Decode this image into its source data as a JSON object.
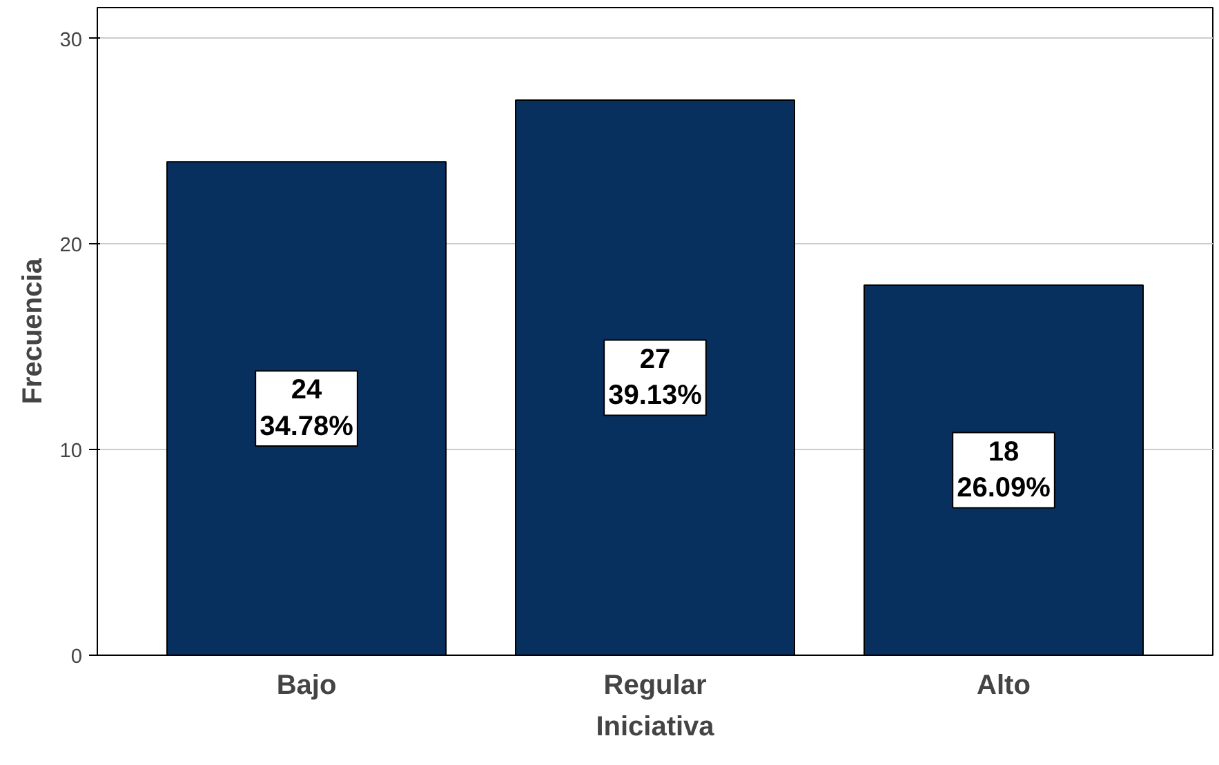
{
  "chart_data": {
    "type": "bar",
    "xlabel": "Iniciativa",
    "ylabel": "Frecuencia",
    "categories": [
      "Bajo",
      "Regular",
      "Alto"
    ],
    "values": [
      24,
      27,
      18
    ],
    "color": "#07305f",
    "value_labels": [
      "24\n34.78%",
      "27\n39.13%",
      "18\n26.09%"
    ],
    "ylim": [
      0,
      31.5
    ],
    "yticks": [
      0,
      10,
      20,
      30
    ],
    "grid": "y"
  }
}
